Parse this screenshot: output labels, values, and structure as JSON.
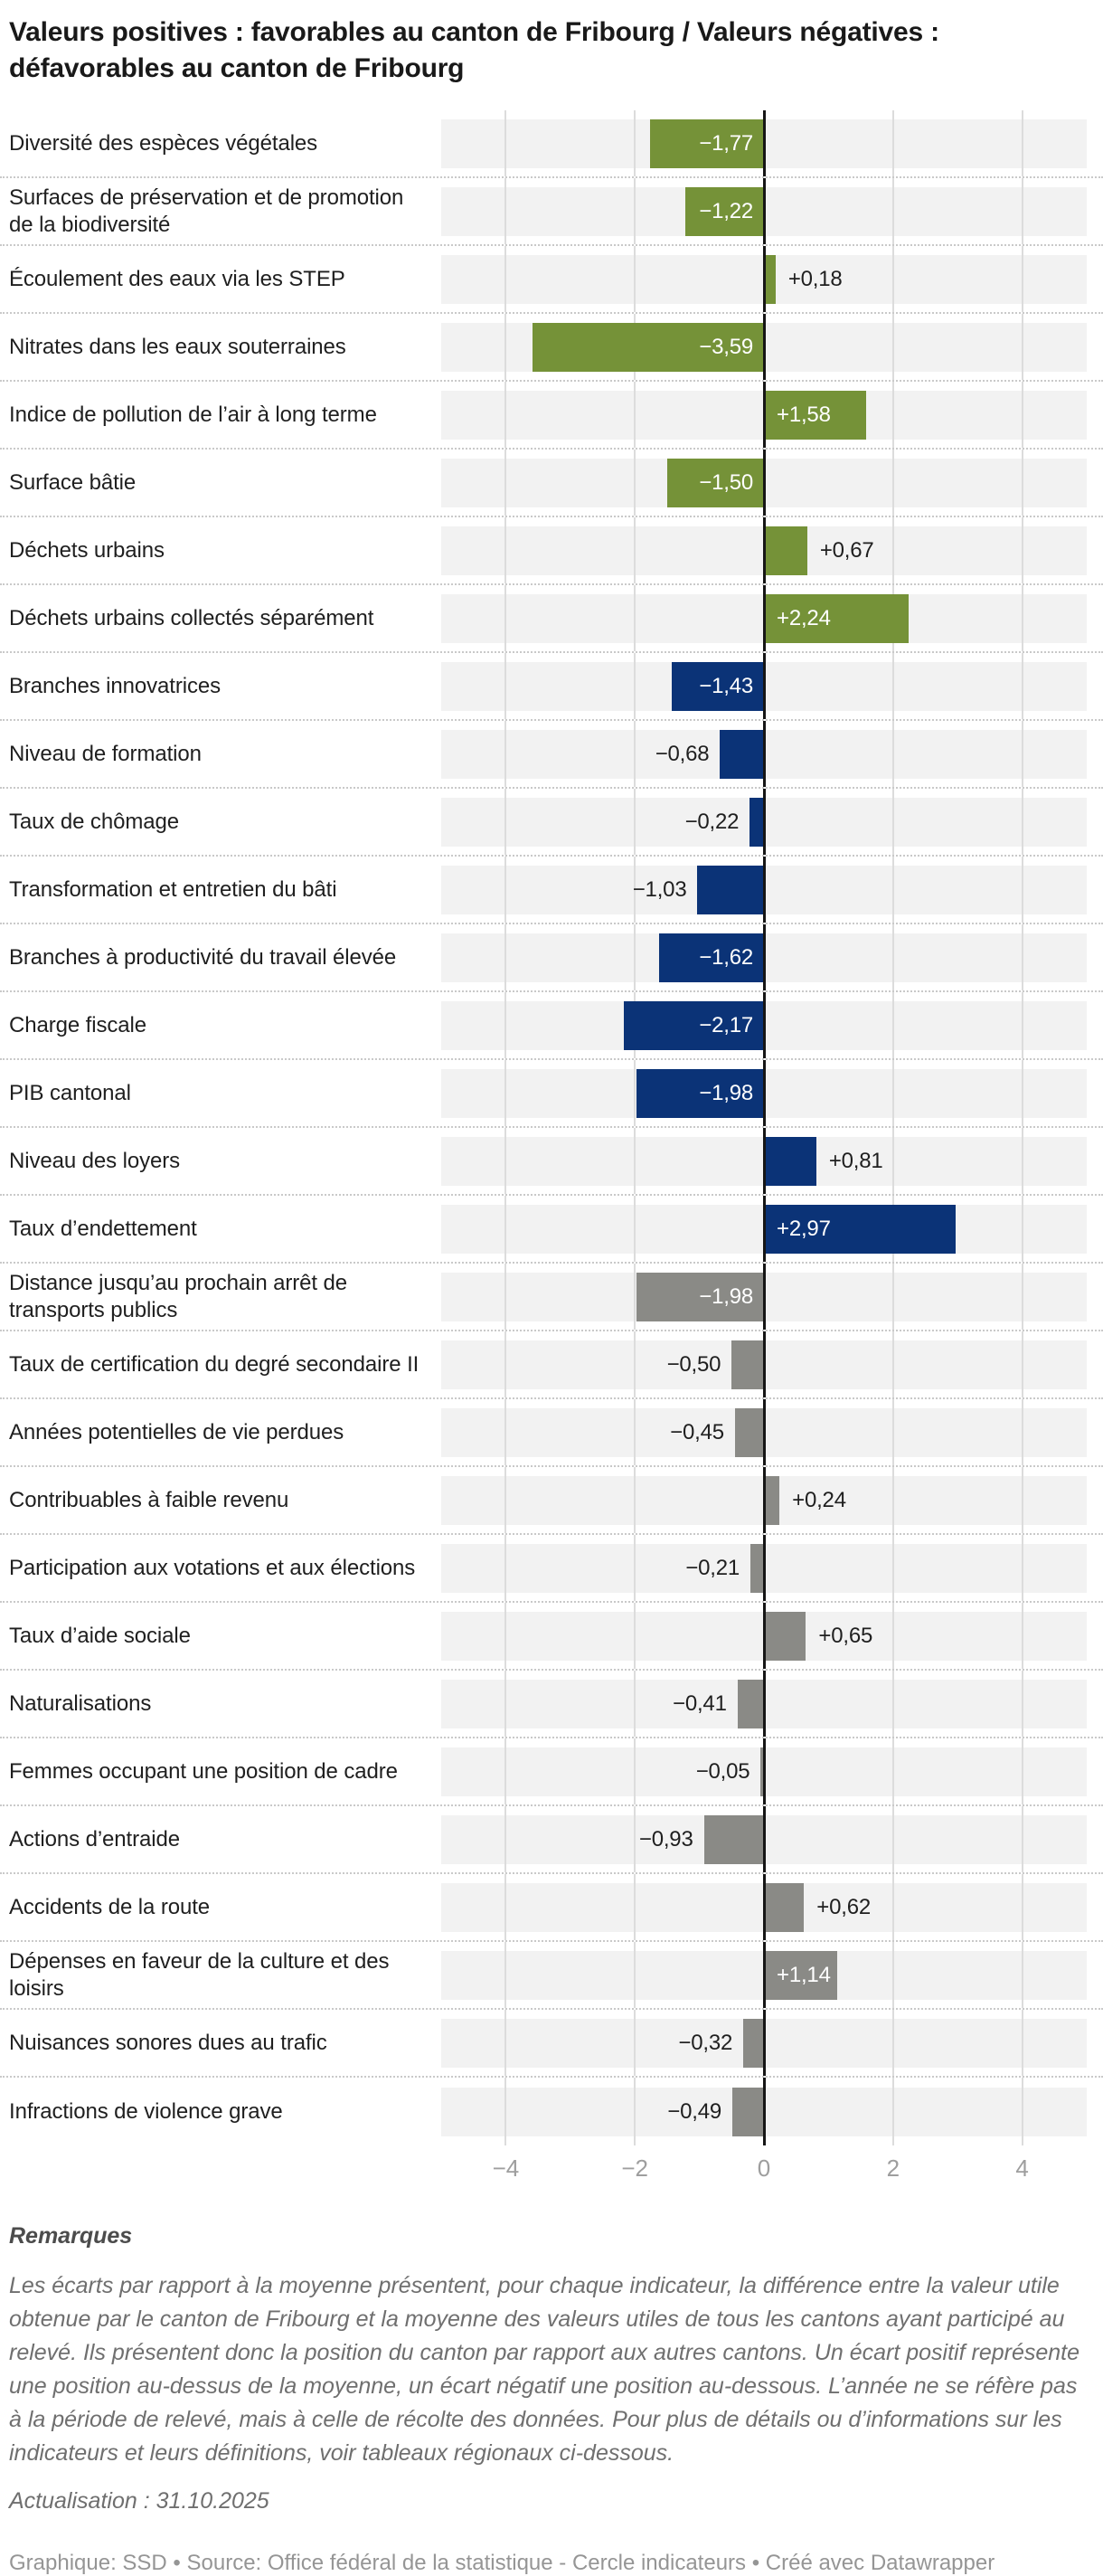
{
  "title": "Valeurs positives : favorables au canton de Fribourg / Valeurs négatives : défavorables au canton de Fribourg",
  "chart_data": {
    "type": "bar",
    "orientation": "horizontal",
    "title": "Valeurs positives : favorables au canton de Fribourg / Valeurs négatives : défavorables au canton de Fribourg",
    "xlim": [
      -5,
      5
    ],
    "x_tick_values": [
      -4,
      -2,
      0,
      2,
      4
    ],
    "x_tick_labels": [
      "−4",
      "−2",
      "0",
      "2",
      "4"
    ],
    "grid": "vertical",
    "legend": "none",
    "colors": {
      "env": "#759238",
      "eco": "#0b3377",
      "soc": "#8a8a86"
    },
    "band_color": "#f2f2f2",
    "zero_line_color": "#161616",
    "rows": [
      {
        "label": "Diversité des espèces végétales",
        "value": -1.77,
        "display": "−1,77",
        "group": "env",
        "label_inside": true
      },
      {
        "label": "Surfaces de préservation et de promotion de la biodiversité",
        "value": -1.22,
        "display": "−1,22",
        "group": "env",
        "label_inside": true
      },
      {
        "label": "Écoulement des eaux via les STEP",
        "value": 0.18,
        "display": "+0,18",
        "group": "env",
        "label_inside": false
      },
      {
        "label": "Nitrates dans les eaux souterraines",
        "value": -3.59,
        "display": "−3,59",
        "group": "env",
        "label_inside": true
      },
      {
        "label": "Indice de pollution de l’air à long terme",
        "value": 1.58,
        "display": "+1,58",
        "group": "env",
        "label_inside": true
      },
      {
        "label": "Surface bâtie",
        "value": -1.5,
        "display": "−1,50",
        "group": "env",
        "label_inside": true
      },
      {
        "label": "Déchets urbains",
        "value": 0.67,
        "display": "+0,67",
        "group": "env",
        "label_inside": false
      },
      {
        "label": "Déchets urbains collectés séparément",
        "value": 2.24,
        "display": "+2,24",
        "group": "env",
        "label_inside": true
      },
      {
        "label": "Branches innovatrices",
        "value": -1.43,
        "display": "−1,43",
        "group": "eco",
        "label_inside": true
      },
      {
        "label": "Niveau de formation",
        "value": -0.68,
        "display": "−0,68",
        "group": "eco",
        "label_inside": false
      },
      {
        "label": "Taux de chômage",
        "value": -0.22,
        "display": "−0,22",
        "group": "eco",
        "label_inside": false
      },
      {
        "label": "Transformation et entretien du bâti",
        "value": -1.03,
        "display": "−1,03",
        "group": "eco",
        "label_inside": false
      },
      {
        "label": "Branches à productivité du travail élevée",
        "value": -1.62,
        "display": "−1,62",
        "group": "eco",
        "label_inside": true
      },
      {
        "label": "Charge fiscale",
        "value": -2.17,
        "display": "−2,17",
        "group": "eco",
        "label_inside": true
      },
      {
        "label": "PIB cantonal",
        "value": -1.98,
        "display": "−1,98",
        "group": "eco",
        "label_inside": true
      },
      {
        "label": "Niveau des loyers",
        "value": 0.81,
        "display": "+0,81",
        "group": "eco",
        "label_inside": false
      },
      {
        "label": "Taux d’endettement",
        "value": 2.97,
        "display": "+2,97",
        "group": "eco",
        "label_inside": true
      },
      {
        "label": "Distance jusqu’au prochain arrêt de transports publics",
        "value": -1.98,
        "display": "−1,98",
        "group": "soc",
        "label_inside": true
      },
      {
        "label": "Taux de certification du degré secondaire II",
        "value": -0.5,
        "display": "−0,50",
        "group": "soc",
        "label_inside": false
      },
      {
        "label": "Années potentielles de vie perdues",
        "value": -0.45,
        "display": "−0,45",
        "group": "soc",
        "label_inside": false
      },
      {
        "label": "Contribuables à faible revenu",
        "value": 0.24,
        "display": "+0,24",
        "group": "soc",
        "label_inside": false
      },
      {
        "label": "Participation aux votations et aux élections",
        "value": -0.21,
        "display": "−0,21",
        "group": "soc",
        "label_inside": false
      },
      {
        "label": "Taux d’aide sociale",
        "value": 0.65,
        "display": "+0,65",
        "group": "soc",
        "label_inside": false
      },
      {
        "label": "Naturalisations",
        "value": -0.41,
        "display": "−0,41",
        "group": "soc",
        "label_inside": false
      },
      {
        "label": "Femmes occupant une position de cadre",
        "value": -0.05,
        "display": "−0,05",
        "group": "soc",
        "label_inside": false
      },
      {
        "label": "Actions d’entraide",
        "value": -0.93,
        "display": "−0,93",
        "group": "soc",
        "label_inside": false
      },
      {
        "label": "Accidents de la route",
        "value": 0.62,
        "display": "+0,62",
        "group": "soc",
        "label_inside": false
      },
      {
        "label": "Dépenses en faveur de la culture et des loisirs",
        "value": 1.14,
        "display": "+1,14",
        "group": "soc",
        "label_inside": true
      },
      {
        "label": "Nuisances sonores dues au trafic",
        "value": -0.32,
        "display": "−0,32",
        "group": "soc",
        "label_inside": false
      },
      {
        "label": "Infractions de violence grave",
        "value": -0.49,
        "display": "−0,49",
        "group": "soc",
        "label_inside": false
      }
    ]
  },
  "notes": {
    "heading": "Remarques",
    "body": "Les écarts par rapport à la moyenne présentent, pour chaque indicateur, la différence entre la valeur utile obtenue par le canton de Fribourg et la moyenne des valeurs utiles de tous les cantons ayant participé au relevé. Ils présentent donc la position du canton par rapport aux autres cantons. Un écart positif représente une position au-dessus de la moyenne, un écart négatif une position au-dessous. L’année ne se réfère pas à la période de relevé, mais à celle de récolte des données. Pour plus de détails ou d’informations sur les indicateurs et leurs définitions, voir tableaux régionaux ci-dessous.",
    "update": "Actualisation : 31.10.2025"
  },
  "footer": {
    "credit": "Graphique: SSD • Source: Office fédéral de la statistique - Cercle indicateurs • Créé avec Datawrapper"
  }
}
